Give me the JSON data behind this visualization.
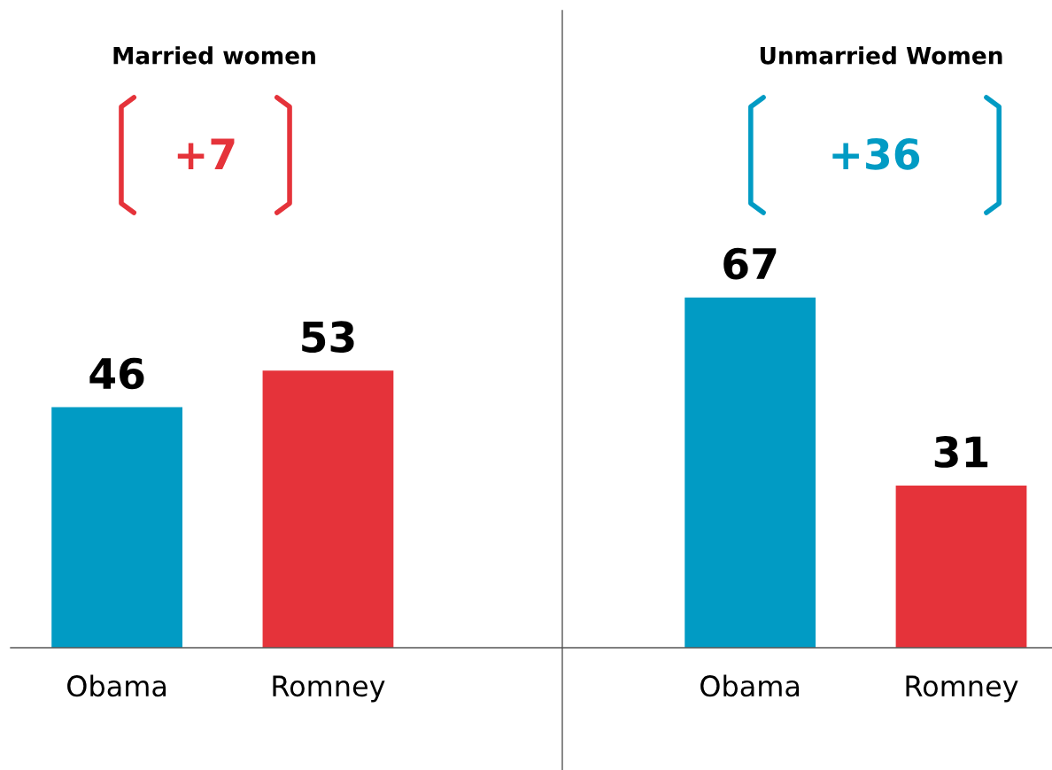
{
  "chart_data": [
    {
      "type": "bar",
      "title": "Married women",
      "categories": [
        "Obama",
        "Romney"
      ],
      "values": [
        46,
        53
      ],
      "colors": [
        "#019bc4",
        "#e5333a"
      ],
      "data_labels": true,
      "annotations": [
        "+7"
      ]
    },
    {
      "type": "bar",
      "title": "Unmarried Women",
      "categories": [
        "Obama",
        "Romney"
      ],
      "values": [
        67,
        31
      ],
      "colors": [
        "#019bc4",
        "#e5333a"
      ],
      "data_labels": true,
      "annotations": [
        "+36"
      ]
    }
  ]
}
